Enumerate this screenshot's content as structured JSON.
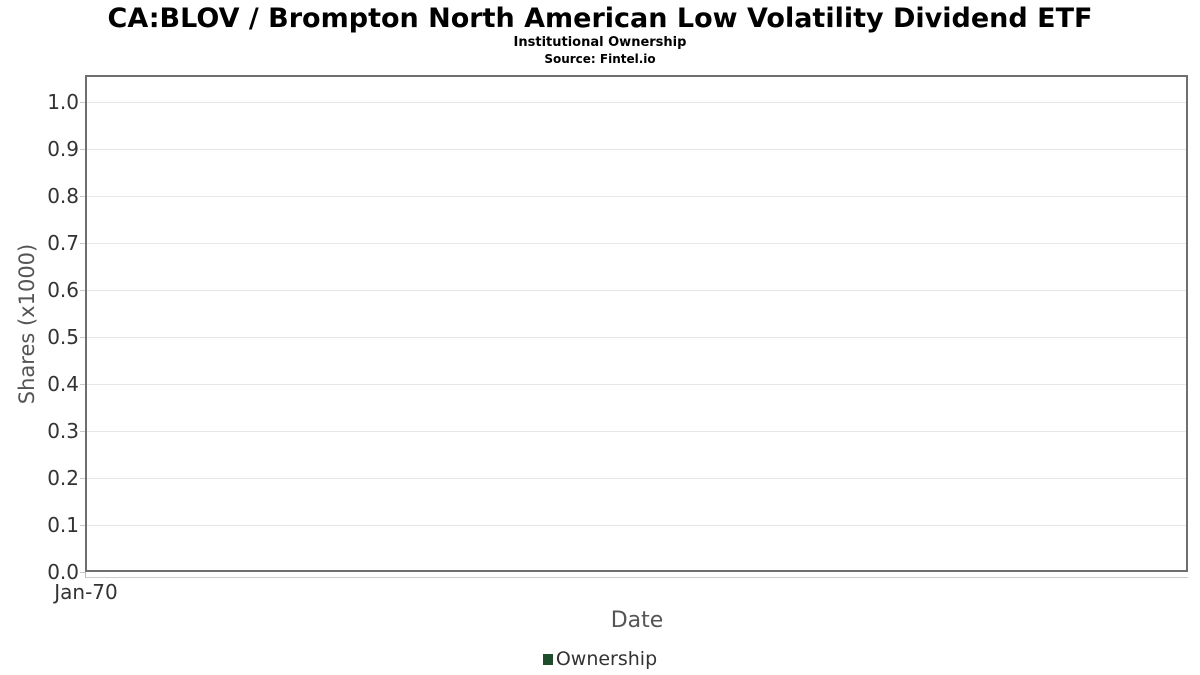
{
  "page": {
    "title": "CA:BLOV / Brompton North American Low Volatility Dividend ETF",
    "subtitle": "Institutional Ownership",
    "source": "Source: Fintel.io"
  },
  "axes": {
    "x_label": "Date",
    "y_label": "Shares (x1000)"
  },
  "legend": {
    "items": [
      {
        "label": "Ownership",
        "color": "#1f4d2b"
      }
    ]
  },
  "colors": {
    "plot_border": "#6f6f6f",
    "gridline": "#e7e7e7",
    "tick_mark": "#c9c9c9",
    "tick_text": "#333333",
    "axis_label_text": "#555555",
    "series_green": "#1f4d2b",
    "background": "#ffffff"
  },
  "chart_data": {
    "type": "bar",
    "title": "CA:BLOV / Brompton North American Low Volatility Dividend ETF",
    "subtitle": "Institutional Ownership",
    "source": "Source: Fintel.io",
    "xlabel": "Date",
    "ylabel": "Shares (x1000)",
    "x_ticks": [
      "Jan-70"
    ],
    "y_ticks": [
      {
        "label": "0.0",
        "value": 0.0
      },
      {
        "label": "0.1",
        "value": 0.1
      },
      {
        "label": "0.2",
        "value": 0.2
      },
      {
        "label": "0.3",
        "value": 0.3
      },
      {
        "label": "0.4",
        "value": 0.4
      },
      {
        "label": "0.5",
        "value": 0.5
      },
      {
        "label": "0.6",
        "value": 0.6
      },
      {
        "label": "0.7",
        "value": 0.7
      },
      {
        "label": "0.8",
        "value": 0.8
      },
      {
        "label": "0.9",
        "value": 0.9
      },
      {
        "label": "1.0",
        "value": 1.0
      }
    ],
    "ylim": [
      0,
      1.055
    ],
    "grid": true,
    "legend_position": "bottom",
    "series": [
      {
        "name": "Ownership",
        "color": "#1f4d2b",
        "x": [],
        "values": []
      }
    ]
  }
}
